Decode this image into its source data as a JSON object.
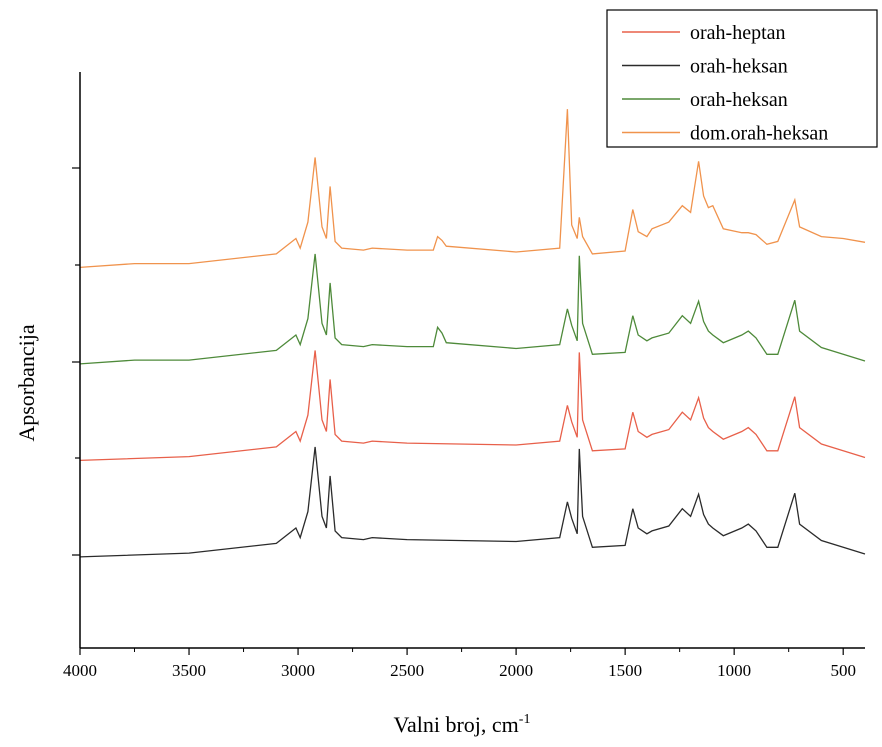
{
  "chart_data": {
    "type": "line",
    "xlabel": "Valni broj, cm",
    "xlabel_superscript": "-1",
    "ylabel": "Apsorbancija",
    "xlim": [
      4000,
      400
    ],
    "x_ticks": [
      4000,
      3500,
      3000,
      2500,
      2000,
      1500,
      1000,
      500
    ],
    "x_reversed": true,
    "y_tick_labels_shown": false,
    "grid": false,
    "legend_position": "top-right",
    "series": [
      {
        "name": "orah-heptan",
        "color": "#e8604a",
        "baseline_offset": 1.0,
        "points": [
          [
            4000,
            0.48
          ],
          [
            3500,
            0.52
          ],
          [
            3100,
            0.62
          ],
          [
            3010,
            0.78
          ],
          [
            2990,
            0.68
          ],
          [
            2955,
            0.95
          ],
          [
            2922,
            1.62
          ],
          [
            2890,
            0.9
          ],
          [
            2870,
            0.78
          ],
          [
            2853,
            1.32
          ],
          [
            2830,
            0.75
          ],
          [
            2800,
            0.68
          ],
          [
            2700,
            0.66
          ],
          [
            2660,
            0.68
          ],
          [
            2500,
            0.66
          ],
          [
            2000,
            0.64
          ],
          [
            1800,
            0.68
          ],
          [
            1765,
            1.05
          ],
          [
            1745,
            0.88
          ],
          [
            1720,
            0.72
          ],
          [
            1710,
            1.6
          ],
          [
            1695,
            0.9
          ],
          [
            1650,
            0.58
          ],
          [
            1500,
            0.6
          ],
          [
            1465,
            0.98
          ],
          [
            1440,
            0.78
          ],
          [
            1400,
            0.72
          ],
          [
            1377,
            0.75
          ],
          [
            1300,
            0.8
          ],
          [
            1238,
            0.98
          ],
          [
            1200,
            0.9
          ],
          [
            1163,
            1.13
          ],
          [
            1140,
            0.92
          ],
          [
            1118,
            0.82
          ],
          [
            1098,
            0.78
          ],
          [
            1050,
            0.7
          ],
          [
            965,
            0.78
          ],
          [
            935,
            0.82
          ],
          [
            900,
            0.75
          ],
          [
            850,
            0.58
          ],
          [
            800,
            0.58
          ],
          [
            722,
            1.14
          ],
          [
            700,
            0.82
          ],
          [
            600,
            0.65
          ],
          [
            500,
            0.58
          ],
          [
            400,
            0.51
          ]
        ]
      },
      {
        "name": "orah-heksan",
        "color": "#2b2b2b",
        "baseline_offset": 0.0,
        "points": [
          [
            4000,
            0.48
          ],
          [
            3500,
            0.52
          ],
          [
            3100,
            0.62
          ],
          [
            3010,
            0.78
          ],
          [
            2990,
            0.68
          ],
          [
            2955,
            0.95
          ],
          [
            2922,
            1.62
          ],
          [
            2890,
            0.9
          ],
          [
            2870,
            0.78
          ],
          [
            2853,
            1.32
          ],
          [
            2830,
            0.75
          ],
          [
            2800,
            0.68
          ],
          [
            2700,
            0.66
          ],
          [
            2660,
            0.68
          ],
          [
            2500,
            0.66
          ],
          [
            2000,
            0.64
          ],
          [
            1800,
            0.68
          ],
          [
            1765,
            1.05
          ],
          [
            1745,
            0.88
          ],
          [
            1720,
            0.72
          ],
          [
            1710,
            1.6
          ],
          [
            1695,
            0.9
          ],
          [
            1650,
            0.58
          ],
          [
            1500,
            0.6
          ],
          [
            1465,
            0.98
          ],
          [
            1440,
            0.78
          ],
          [
            1400,
            0.72
          ],
          [
            1377,
            0.75
          ],
          [
            1300,
            0.8
          ],
          [
            1238,
            0.98
          ],
          [
            1200,
            0.9
          ],
          [
            1163,
            1.13
          ],
          [
            1140,
            0.92
          ],
          [
            1118,
            0.82
          ],
          [
            1098,
            0.78
          ],
          [
            1050,
            0.7
          ],
          [
            965,
            0.78
          ],
          [
            935,
            0.82
          ],
          [
            900,
            0.75
          ],
          [
            850,
            0.58
          ],
          [
            800,
            0.58
          ],
          [
            722,
            1.14
          ],
          [
            700,
            0.82
          ],
          [
            600,
            0.65
          ],
          [
            500,
            0.58
          ],
          [
            400,
            0.51
          ]
        ]
      },
      {
        "name": "orah-heksan",
        "color": "#4e8a3a",
        "baseline_offset": 2.0,
        "points": [
          [
            4000,
            0.48
          ],
          [
            3750,
            0.52
          ],
          [
            3500,
            0.52
          ],
          [
            3100,
            0.62
          ],
          [
            3010,
            0.78
          ],
          [
            2990,
            0.68
          ],
          [
            2955,
            0.95
          ],
          [
            2922,
            1.62
          ],
          [
            2890,
            0.9
          ],
          [
            2870,
            0.78
          ],
          [
            2853,
            1.32
          ],
          [
            2830,
            0.75
          ],
          [
            2800,
            0.68
          ],
          [
            2700,
            0.66
          ],
          [
            2660,
            0.68
          ],
          [
            2500,
            0.66
          ],
          [
            2380,
            0.66
          ],
          [
            2360,
            0.86
          ],
          [
            2340,
            0.8
          ],
          [
            2320,
            0.7
          ],
          [
            2000,
            0.64
          ],
          [
            1800,
            0.68
          ],
          [
            1765,
            1.05
          ],
          [
            1745,
            0.88
          ],
          [
            1720,
            0.72
          ],
          [
            1710,
            1.6
          ],
          [
            1695,
            0.9
          ],
          [
            1650,
            0.58
          ],
          [
            1500,
            0.6
          ],
          [
            1465,
            0.98
          ],
          [
            1440,
            0.78
          ],
          [
            1400,
            0.72
          ],
          [
            1377,
            0.75
          ],
          [
            1300,
            0.8
          ],
          [
            1238,
            0.98
          ],
          [
            1200,
            0.9
          ],
          [
            1163,
            1.13
          ],
          [
            1140,
            0.92
          ],
          [
            1118,
            0.82
          ],
          [
            1098,
            0.78
          ],
          [
            1050,
            0.7
          ],
          [
            965,
            0.78
          ],
          [
            935,
            0.82
          ],
          [
            900,
            0.75
          ],
          [
            850,
            0.58
          ],
          [
            800,
            0.58
          ],
          [
            722,
            1.14
          ],
          [
            700,
            0.82
          ],
          [
            600,
            0.65
          ],
          [
            500,
            0.58
          ],
          [
            400,
            0.51
          ]
        ]
      },
      {
        "name": "dom.orah-heksan",
        "color": "#f0934d",
        "baseline_offset": 3.0,
        "points": [
          [
            4000,
            0.48
          ],
          [
            3750,
            0.52
          ],
          [
            3500,
            0.52
          ],
          [
            3100,
            0.62
          ],
          [
            3010,
            0.78
          ],
          [
            2990,
            0.68
          ],
          [
            2955,
            0.95
          ],
          [
            2922,
            1.62
          ],
          [
            2890,
            0.9
          ],
          [
            2870,
            0.78
          ],
          [
            2853,
            1.32
          ],
          [
            2830,
            0.75
          ],
          [
            2800,
            0.68
          ],
          [
            2700,
            0.66
          ],
          [
            2660,
            0.68
          ],
          [
            2500,
            0.66
          ],
          [
            2380,
            0.66
          ],
          [
            2360,
            0.8
          ],
          [
            2340,
            0.76
          ],
          [
            2320,
            0.7
          ],
          [
            2000,
            0.64
          ],
          [
            1800,
            0.68
          ],
          [
            1765,
            2.12
          ],
          [
            1745,
            0.92
          ],
          [
            1720,
            0.78
          ],
          [
            1710,
            1.0
          ],
          [
            1695,
            0.8
          ],
          [
            1650,
            0.62
          ],
          [
            1500,
            0.65
          ],
          [
            1465,
            1.08
          ],
          [
            1440,
            0.85
          ],
          [
            1400,
            0.8
          ],
          [
            1377,
            0.88
          ],
          [
            1300,
            0.95
          ],
          [
            1238,
            1.12
          ],
          [
            1200,
            1.05
          ],
          [
            1163,
            1.58
          ],
          [
            1140,
            1.22
          ],
          [
            1118,
            1.1
          ],
          [
            1098,
            1.12
          ],
          [
            1050,
            0.88
          ],
          [
            965,
            0.84
          ],
          [
            935,
            0.84
          ],
          [
            900,
            0.82
          ],
          [
            850,
            0.72
          ],
          [
            800,
            0.75
          ],
          [
            722,
            1.18
          ],
          [
            700,
            0.9
          ],
          [
            600,
            0.8
          ],
          [
            500,
            0.78
          ],
          [
            400,
            0.74
          ]
        ]
      }
    ]
  }
}
